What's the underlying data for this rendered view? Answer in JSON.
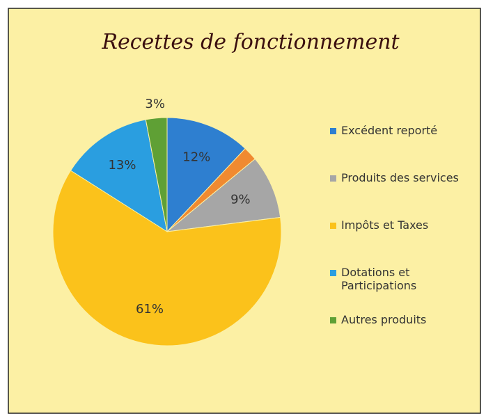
{
  "chart_data": {
    "type": "pie",
    "title": "Recettes de fonctionnement",
    "categories": [
      "Excédent reporté",
      null,
      "Produits des services",
      "Impôts et Taxes",
      "Dotations et Participations",
      "Autres produits"
    ],
    "values": [
      12,
      2,
      9,
      61,
      13,
      3
    ],
    "value_labels": [
      "12%",
      null,
      "9%",
      "61%",
      "13%",
      "3%"
    ],
    "colors": [
      "#2e7fd0",
      "#f08a30",
      "#a6a6a6",
      "#fbc21b",
      "#2a9ee0",
      "#5fa035"
    ],
    "legend": "right"
  }
}
